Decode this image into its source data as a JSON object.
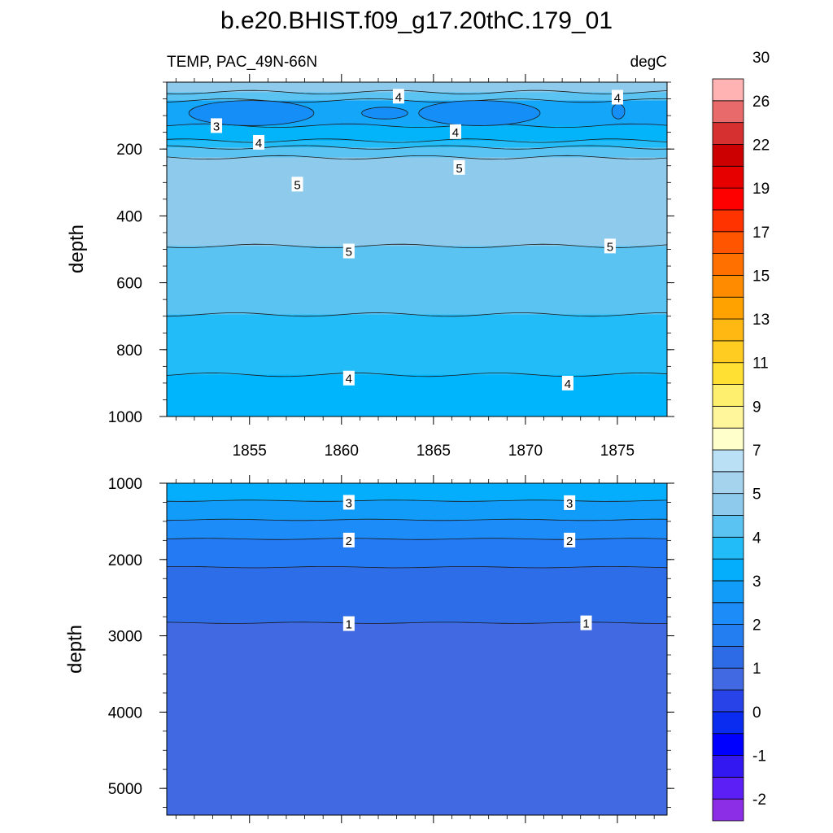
{
  "title": "b.e20.BHIST.f09_g17.20thC.179_01",
  "chart_data": [
    {
      "type": "heatmap",
      "panel": "upper",
      "left_label": "TEMP, PAC_49N-66N",
      "right_label": "degC",
      "ylabel": "depth",
      "xlabel": "",
      "xlim": [
        1850.5,
        1877.7
      ],
      "ylim": [
        1000,
        0
      ],
      "x_ticks": [
        1855,
        1860,
        1865,
        1870,
        1875
      ],
      "y_ticks": [
        200,
        400,
        600,
        800,
        1000
      ],
      "grid": false,
      "layers": [
        {
          "top": 0,
          "level": 6.0,
          "color": "#8ecaeb"
        },
        {
          "top": 30,
          "level": 5.0,
          "color": "#5bc3f2"
        },
        {
          "top": 55,
          "level": 4.0,
          "color": "#14a6f8"
        },
        {
          "top": 130,
          "level": 3.5,
          "color": "#04b4fb"
        },
        {
          "top": 175,
          "level": 4.5,
          "color": "#22bdf8"
        },
        {
          "top": 195,
          "level": 5.0,
          "color": "#5bc3f2"
        },
        {
          "top": 225,
          "level": 5.5,
          "color": "#8ecaeb"
        },
        {
          "top": 490,
          "level": 5.0,
          "color": "#5bc3f2"
        },
        {
          "top": 695,
          "level": 4.5,
          "color": "#22bdf8"
        },
        {
          "top": 875,
          "level": 4.0,
          "color": "#00b5fc"
        }
      ],
      "cold_cores": [
        {
          "x0": 1851.7,
          "x1": 1858.5,
          "d0": 55,
          "d1": 130,
          "level": 3.0,
          "color": "#168ef8"
        },
        {
          "x0": 1861.1,
          "x1": 1863.6,
          "d0": 75,
          "d1": 110,
          "level": 3.0,
          "color": "#168ef8"
        },
        {
          "x0": 1864.2,
          "x1": 1870.8,
          "d0": 55,
          "d1": 130,
          "level": 3.0,
          "color": "#168ef8"
        },
        {
          "x0": 1874.7,
          "x1": 1875.4,
          "d0": 65,
          "d1": 110,
          "level": 3.0,
          "color": "#168ef8"
        }
      ],
      "contour_labels": [
        {
          "x": 1863.1,
          "y": 42,
          "text": "4"
        },
        {
          "x": 1875.0,
          "y": 45,
          "text": "4"
        },
        {
          "x": 1853.2,
          "y": 130,
          "text": "3"
        },
        {
          "x": 1866.2,
          "y": 148,
          "text": "4"
        },
        {
          "x": 1855.5,
          "y": 180,
          "text": "4"
        },
        {
          "x": 1866.4,
          "y": 255,
          "text": "5"
        },
        {
          "x": 1857.6,
          "y": 305,
          "text": "5"
        },
        {
          "x": 1860.4,
          "y": 505,
          "text": "5"
        },
        {
          "x": 1874.6,
          "y": 490,
          "text": "5"
        },
        {
          "x": 1860.4,
          "y": 885,
          "text": "4"
        },
        {
          "x": 1872.3,
          "y": 900,
          "text": "4"
        }
      ]
    },
    {
      "type": "heatmap",
      "panel": "lower",
      "ylabel": "depth",
      "xlabel": "",
      "xlim": [
        1850.5,
        1877.7
      ],
      "ylim": [
        5350,
        1000
      ],
      "y_ticks": [
        1000,
        2000,
        3000,
        4000,
        5000
      ],
      "grid": false,
      "layers": [
        {
          "top": 1000,
          "level": 3.5,
          "color": "#04aefc"
        },
        {
          "top": 1230,
          "level": 2.5,
          "color": "#129cfa"
        },
        {
          "top": 1480,
          "level": 2.0,
          "color": "#1c8cf8"
        },
        {
          "top": 1730,
          "level": 1.5,
          "color": "#237af2"
        },
        {
          "top": 2100,
          "level": 1.0,
          "color": "#2e6de8"
        },
        {
          "top": 2830,
          "level": 0.7,
          "color": "#4169e1"
        }
      ],
      "contour_labels": [
        {
          "x": 1860.4,
          "y": 1250,
          "text": "3"
        },
        {
          "x": 1872.4,
          "y": 1255,
          "text": "3"
        },
        {
          "x": 1860.4,
          "y": 1745,
          "text": "2"
        },
        {
          "x": 1872.4,
          "y": 1745,
          "text": "2"
        },
        {
          "x": 1860.4,
          "y": 2840,
          "text": "1"
        },
        {
          "x": 1873.3,
          "y": 2830,
          "text": "1"
        }
      ]
    }
  ],
  "colorbar": {
    "colors": [
      "#8b2ee6",
      "#5c1ff5",
      "#3318f2",
      "#0000ff",
      "#0a2cf0",
      "#2844e8",
      "#4169e1",
      "#2d6be6",
      "#237ef2",
      "#1c8cf8",
      "#129cfa",
      "#04aefc",
      "#22bdf8",
      "#5bc3f2",
      "#8ecaeb",
      "#a5d3ee",
      "#b9e0f5",
      "#ffffcc",
      "#fff59a",
      "#ffef6e",
      "#ffe033",
      "#ffcc22",
      "#ffb811",
      "#ffa200",
      "#ff8c00",
      "#ff7000",
      "#ff5500",
      "#ff3300",
      "#ff0000",
      "#e60000",
      "#cc0000",
      "#d73030",
      "#e86a6a",
      "#ffb3b3"
    ],
    "tick_labels": [
      "-2",
      "-1",
      "0",
      "1",
      "2",
      "3",
      "4",
      "5",
      "7",
      "9",
      "11",
      "13",
      "15",
      "17",
      "19",
      "22",
      "26",
      "30"
    ]
  }
}
